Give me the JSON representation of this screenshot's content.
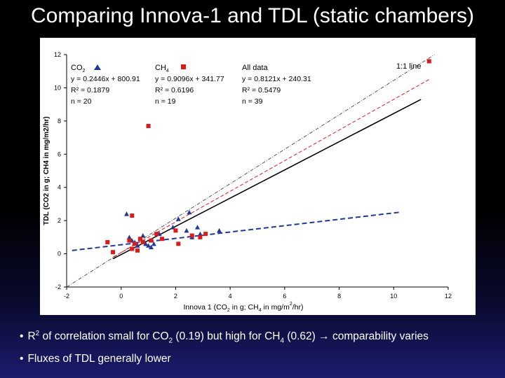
{
  "slide": {
    "title": "Comparing Innova-1 and TDL (static chambers)"
  },
  "bullets": [
    {
      "prefix": "R",
      "sup": "2",
      "text": " of correlation small for CO",
      "sub": "2",
      "text2": " (0.19) but high for CH",
      "sub2": "4",
      "text3": " (0.62) ",
      "arrow": "→",
      "text4": " comparability varies"
    },
    {
      "text": "Fluxes of TDL generally lower"
    }
  ],
  "chart_data": {
    "type": "scatter",
    "xlabel_parts": [
      "Innova 1 (CO",
      "2",
      " in g; CH",
      "4",
      " in mg/m",
      "2",
      "/hr)"
    ],
    "ylabel": "TDL (CO2 in g; CH4 in mg/m2/hr)",
    "xlim": [
      -2,
      12
    ],
    "ylim": [
      -2,
      12
    ],
    "xticks": [
      -2,
      0,
      2,
      4,
      6,
      8,
      10,
      12
    ],
    "yticks": [
      -2,
      0,
      2,
      4,
      6,
      8,
      10,
      12
    ],
    "series": [
      {
        "name": "CO2",
        "legend_label": "CO",
        "legend_sub": "2",
        "marker": "triangle",
        "color": "#1f3a93",
        "fit_label": "y = 0.2446x + 800.91",
        "r2_label": "R² = 0.1879",
        "n_label": "n = 20",
        "points": [
          [
            0.2,
            2.4
          ],
          [
            0.3,
            1.0
          ],
          [
            0.4,
            0.8
          ],
          [
            0.5,
            0.7
          ],
          [
            0.6,
            0.5
          ],
          [
            0.7,
            0.9
          ],
          [
            0.8,
            1.1
          ],
          [
            0.9,
            0.6
          ],
          [
            1.0,
            0.5
          ],
          [
            1.1,
            0.4
          ],
          [
            1.2,
            0.6
          ],
          [
            1.4,
            1.2
          ],
          [
            1.9,
            1.6
          ],
          [
            2.1,
            2.1
          ],
          [
            2.4,
            1.4
          ],
          [
            2.5,
            2.5
          ],
          [
            2.6,
            1.0
          ],
          [
            2.8,
            1.6
          ],
          [
            2.9,
            1.2
          ],
          [
            3.6,
            1.4
          ]
        ],
        "fit": [
          [
            -1.8,
            0.2
          ],
          [
            10.2,
            2.5
          ]
        ]
      },
      {
        "name": "CH4",
        "legend_label": "CH",
        "legend_sub": "4",
        "marker": "square",
        "color": "#dd1b1b",
        "fit_label": "y = 0.9096x + 341.77",
        "r2_label": "R² = 0.6196",
        "n_label": "n = 19",
        "points": [
          [
            -0.5,
            0.7
          ],
          [
            -0.3,
            0.1
          ],
          [
            0.3,
            0.8
          ],
          [
            0.4,
            2.3
          ],
          [
            0.4,
            0.3
          ],
          [
            0.5,
            0.6
          ],
          [
            0.6,
            0.2
          ],
          [
            0.7,
            0.9
          ],
          [
            0.8,
            0.7
          ],
          [
            1.0,
            7.7
          ],
          [
            1.1,
            0.8
          ],
          [
            1.3,
            1.2
          ],
          [
            1.5,
            0.9
          ],
          [
            2.0,
            1.4
          ],
          [
            2.1,
            0.6
          ],
          [
            2.6,
            1.1
          ],
          [
            2.9,
            1.0
          ],
          [
            3.1,
            1.2
          ],
          [
            11.3,
            11.6
          ]
        ],
        "fit": [
          [
            -0.3,
            -0.2
          ],
          [
            11.3,
            10.5
          ]
        ]
      },
      {
        "name": "All data",
        "fit_label": "y = 0.8121x + 240.31",
        "r2_label": "R² = 0.5479",
        "n_label": "n = 39",
        "color": "#000000",
        "fit": [
          [
            -0.3,
            -0.3
          ],
          [
            11.0,
            9.3
          ]
        ]
      }
    ],
    "reference_line": {
      "label": "1:1 line",
      "points": [
        [
          -2,
          -2
        ],
        [
          11.5,
          12
        ]
      ]
    }
  }
}
